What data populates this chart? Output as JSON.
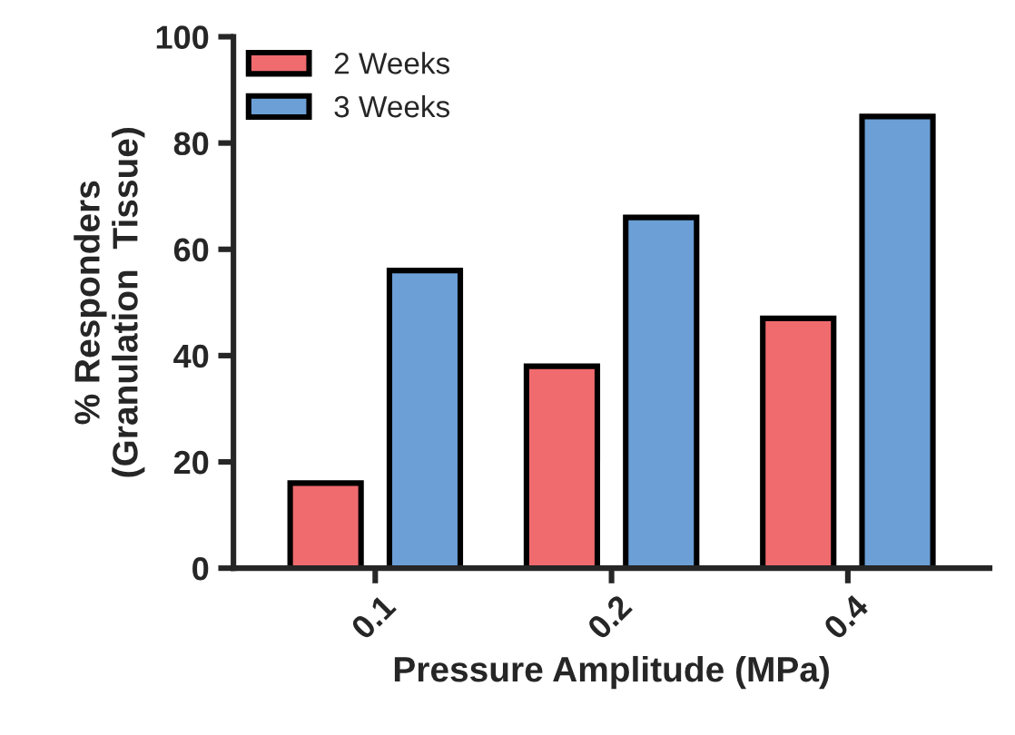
{
  "chart_data": {
    "type": "bar",
    "xlabel": "Pressure Amplitude (MPa)",
    "ylabel": "% Responders\n(Granulation  Tissue)",
    "categories": [
      "0.1",
      "0.2",
      "0.4"
    ],
    "series": [
      {
        "name": "2 Weeks",
        "color": "#f06b6e",
        "values": [
          16,
          38,
          47
        ]
      },
      {
        "name": "3 Weeks",
        "color": "#6b9fd6",
        "values": [
          56,
          66,
          85
        ]
      }
    ],
    "ylim": [
      0,
      100
    ],
    "yticks": [
      0,
      20,
      40,
      60,
      80,
      100
    ],
    "grid": false,
    "legend": "top left"
  }
}
